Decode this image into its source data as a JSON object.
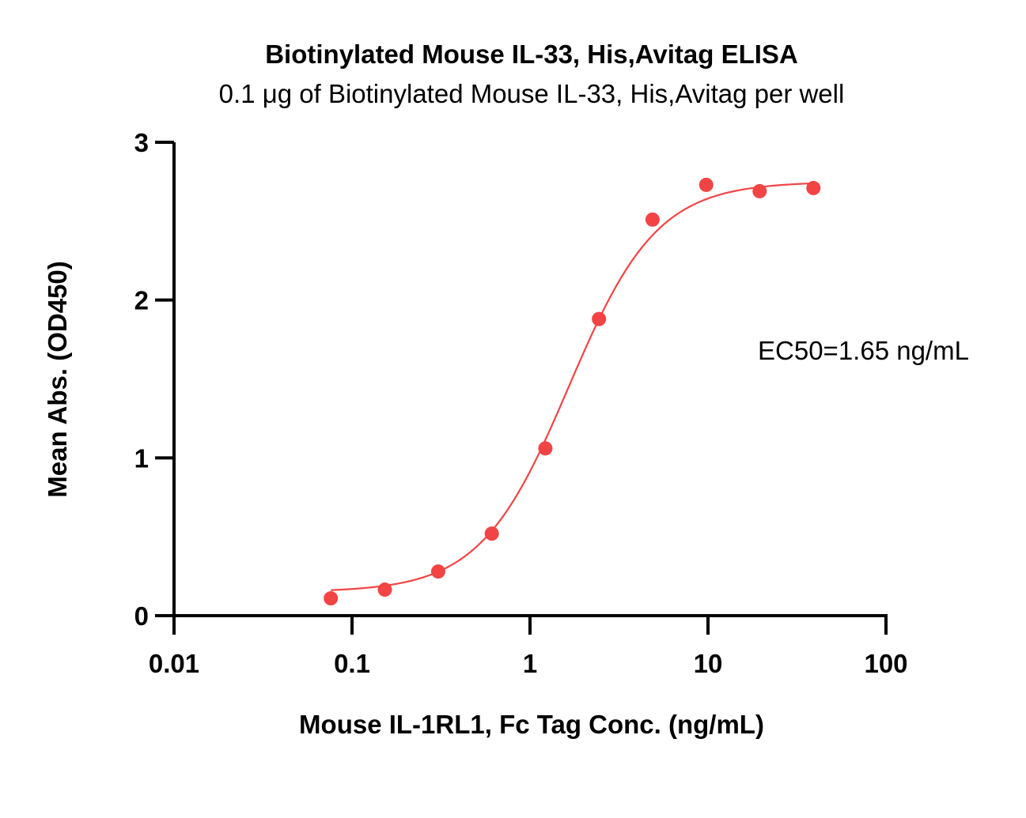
{
  "chart_data": {
    "type": "scatter",
    "title": "Biotinylated Mouse IL-33, His,Avitag ELISA",
    "subtitle": "0.1 μg of Biotinylated Mouse IL-33, His,Avitag per well",
    "xlabel": "Mouse IL-1RL1, Fc Tag Conc. (ng/mL)",
    "ylabel": "Mean Abs. (OD450)",
    "x_scale": "log",
    "xlim": [
      0.01,
      100
    ],
    "ylim": [
      0,
      3
    ],
    "x_ticks": [
      0.01,
      0.1,
      1,
      10,
      100
    ],
    "x_tick_labels": [
      "0.01",
      "0.1",
      "1",
      "10",
      "100"
    ],
    "y_ticks": [
      0,
      1,
      2,
      3
    ],
    "y_tick_labels": [
      "0",
      "1",
      "2",
      "3"
    ],
    "grid": false,
    "annotation": "EC50=1.65 ng/mL",
    "series": [
      {
        "x": [
          0.076,
          0.153,
          0.305,
          0.61,
          1.22,
          2.44,
          4.88,
          9.77,
          19.5,
          39.1
        ],
        "y": [
          0.11,
          0.165,
          0.28,
          0.52,
          1.06,
          1.88,
          2.51,
          2.73,
          2.69,
          2.71
        ],
        "fit": {
          "model": "4PL",
          "bottom": 0.15,
          "top": 2.75,
          "ec50": 1.65,
          "hill": 1.75
        }
      }
    ],
    "colors": {
      "series": "#f24444",
      "axis": "#000000"
    }
  }
}
